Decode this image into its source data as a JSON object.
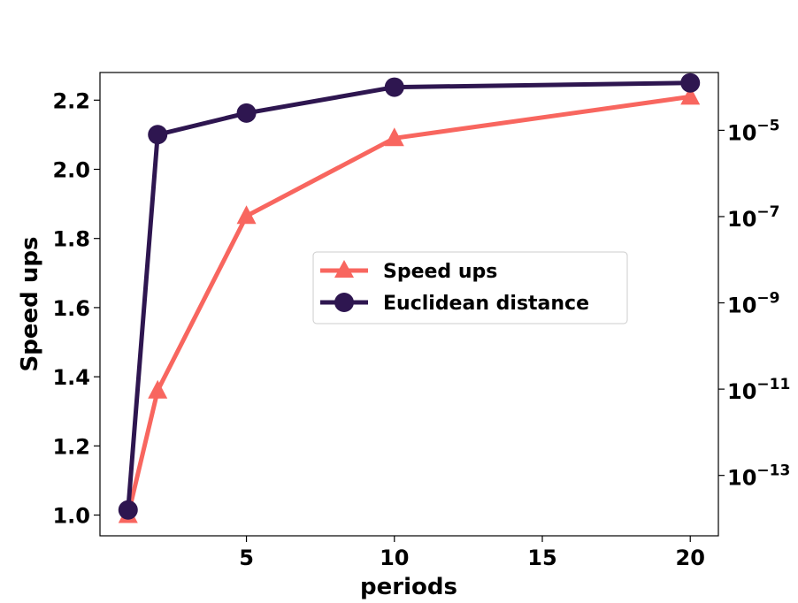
{
  "chart_data": {
    "type": "line",
    "title": "",
    "xlabel": "periods",
    "ylabel": "Speed ups",
    "xlim": [
      0.05,
      20.95
    ],
    "ylim": [
      0.94,
      2.28
    ],
    "y2lim_log10": [
      -14.4,
      -3.66
    ],
    "x_ticks": [
      5,
      10,
      15,
      20
    ],
    "y_ticks": [
      1.0,
      1.2,
      1.4,
      1.6,
      1.8,
      2.0,
      2.2
    ],
    "y2_ticks": [
      {
        "base": "10",
        "exp": "−5",
        "log10": -5
      },
      {
        "base": "10",
        "exp": "−7",
        "log10": -7
      },
      {
        "base": "10",
        "exp": "−9",
        "log10": -9
      },
      {
        "base": "10",
        "exp": "−11",
        "log10": -11
      },
      {
        "base": "10",
        "exp": "−13",
        "log10": -13
      }
    ],
    "grid": false,
    "legend_position": "center-right",
    "series": [
      {
        "name": "Speed ups",
        "axis": "left",
        "color": "#f8665f",
        "marker": "triangle",
        "x": [
          1,
          2,
          5,
          10,
          20
        ],
        "y": [
          1.0,
          1.36,
          1.865,
          2.09,
          2.21
        ]
      },
      {
        "name": "Euclidean distance",
        "axis": "right",
        "color": "#2e1650",
        "marker": "circle",
        "x": [
          1,
          2,
          5,
          10,
          20
        ],
        "y_log10": [
          -13.8,
          -5.1,
          -4.6,
          -4.0,
          -3.9
        ]
      }
    ]
  }
}
